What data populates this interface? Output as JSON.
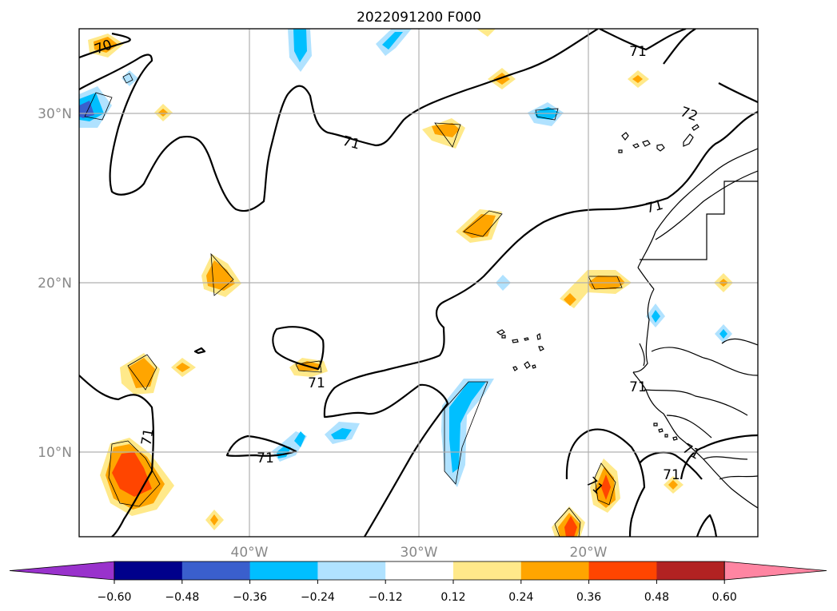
{
  "title": "2022091200 F000",
  "map": {
    "lat_labels": [
      "30°N",
      "20°N",
      "10°N"
    ],
    "lon_labels": [
      "40°W",
      "30°W",
      "20°W"
    ],
    "contour_labels": [
      "70",
      "71",
      "71",
      "71",
      "72",
      "71",
      "71",
      "71",
      "71",
      "71",
      "71",
      "71"
    ]
  },
  "colorbar": {
    "ticks": [
      "−0.60",
      "−0.48",
      "−0.36",
      "−0.24",
      "−0.12",
      "0.12",
      "0.24",
      "0.36",
      "0.48",
      "0.60"
    ],
    "colors": [
      "#9932cc",
      "#00008b",
      "#3a5fcd",
      "#00bfff",
      "#b0e2ff",
      "#ffffff",
      "#ffe98a",
      "#ffa500",
      "#ff4500",
      "#b22222",
      "#ff85a2"
    ]
  }
}
